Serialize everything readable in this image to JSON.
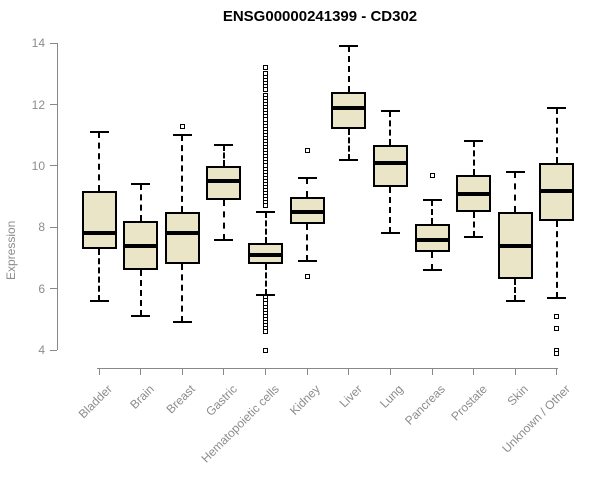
{
  "title": "ENSG00000241399 - CD302",
  "colors": {
    "box_fill": "#EBE5C8",
    "box_border": "#000000",
    "median": "#000000",
    "axis": "#888888",
    "axis_text": "#8C8C8C",
    "title_text": "#000000",
    "background": "#FFFFFF"
  },
  "chart_data": {
    "type": "boxplot",
    "title": "ENSG00000241399 - CD302",
    "xlabel": "",
    "ylabel": "Expression",
    "ylim": [
      4,
      14
    ],
    "yticks": [
      4,
      6,
      8,
      10,
      12,
      14
    ],
    "grid": false,
    "legend": "none",
    "categories": [
      "Bladder",
      "Brain",
      "Breast",
      "Gastric",
      "Hematopoietic cells",
      "Kidney",
      "Liver",
      "Lung",
      "Pancreas",
      "Prostate",
      "Skin",
      "Unknown / Other"
    ],
    "series": [
      {
        "category": "Bladder",
        "whisker_low": 5.6,
        "q1": 7.3,
        "median": 7.8,
        "q3": 9.2,
        "whisker_high": 11.1,
        "outliers": []
      },
      {
        "category": "Brain",
        "whisker_low": 5.1,
        "q1": 6.6,
        "median": 7.4,
        "q3": 8.2,
        "whisker_high": 9.4,
        "outliers": []
      },
      {
        "category": "Breast",
        "whisker_low": 4.9,
        "q1": 6.8,
        "median": 7.8,
        "q3": 8.5,
        "whisker_high": 11.0,
        "outliers": [
          11.3
        ]
      },
      {
        "category": "Gastric",
        "whisker_low": 7.6,
        "q1": 8.9,
        "median": 9.5,
        "q3": 10.0,
        "whisker_high": 10.7,
        "outliers": []
      },
      {
        "category": "Hematopoietic cells",
        "whisker_low": 5.8,
        "q1": 6.8,
        "median": 7.1,
        "q3": 7.5,
        "whisker_high": 8.5,
        "outliers": [
          13.2,
          13.0,
          12.9,
          12.8,
          12.7,
          12.6,
          12.5,
          12.3,
          12.2,
          12.1,
          12.0,
          11.9,
          11.8,
          11.7,
          11.6,
          11.5,
          11.4,
          11.3,
          11.2,
          11.1,
          11.0,
          10.9,
          10.8,
          10.7,
          10.6,
          10.5,
          10.4,
          10.3,
          10.2,
          10.1,
          10.0,
          9.9,
          9.8,
          9.7,
          9.6,
          9.5,
          9.4,
          9.3,
          9.2,
          9.1,
          9.0,
          8.9,
          8.8,
          8.7,
          5.7,
          5.6,
          5.5,
          5.4,
          5.3,
          5.2,
          5.1,
          5.0,
          4.9,
          4.8,
          4.7,
          4.6,
          4.0
        ]
      },
      {
        "category": "Kidney",
        "whisker_low": 6.9,
        "q1": 8.1,
        "median": 8.5,
        "q3": 9.0,
        "whisker_high": 9.6,
        "outliers": [
          10.5,
          6.4
        ]
      },
      {
        "category": "Liver",
        "whisker_low": 10.2,
        "q1": 11.2,
        "median": 11.9,
        "q3": 12.4,
        "whisker_high": 13.9,
        "outliers": []
      },
      {
        "category": "Lung",
        "whisker_low": 7.8,
        "q1": 9.3,
        "median": 10.1,
        "q3": 10.7,
        "whisker_high": 11.8,
        "outliers": []
      },
      {
        "category": "Pancreas",
        "whisker_low": 6.6,
        "q1": 7.2,
        "median": 7.6,
        "q3": 8.1,
        "whisker_high": 8.9,
        "outliers": [
          9.7
        ]
      },
      {
        "category": "Prostate",
        "whisker_low": 7.7,
        "q1": 8.5,
        "median": 9.1,
        "q3": 9.7,
        "whisker_high": 10.8,
        "outliers": []
      },
      {
        "category": "Skin",
        "whisker_low": 5.6,
        "q1": 6.3,
        "median": 7.4,
        "q3": 8.5,
        "whisker_high": 9.8,
        "outliers": []
      },
      {
        "category": "Unknown / Other",
        "whisker_low": 5.7,
        "q1": 8.2,
        "median": 9.2,
        "q3": 10.1,
        "whisker_high": 11.9,
        "outliers": [
          5.1,
          4.7,
          4.0,
          3.9
        ]
      }
    ]
  }
}
